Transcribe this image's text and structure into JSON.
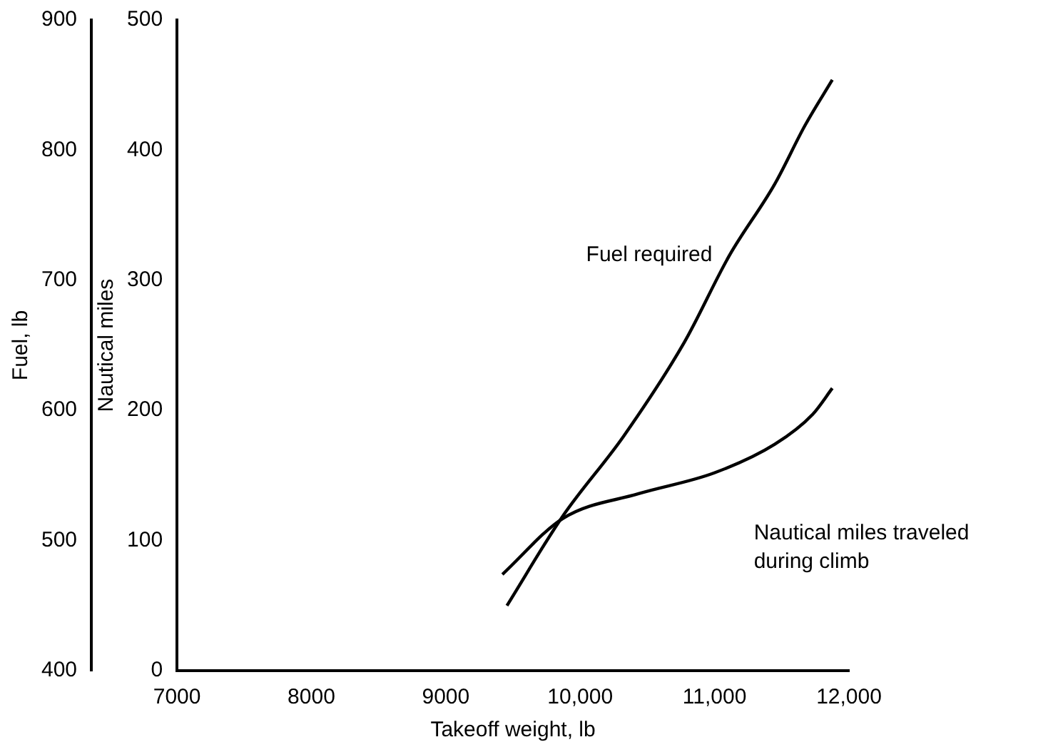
{
  "chart_data": {
    "type": "line",
    "xlabel": "Takeoff weight, lb",
    "ylabel": "Fuel, lb",
    "y2label": "Nautical miles",
    "xlim": [
      7000,
      12000
    ],
    "xticks": [
      7000,
      8000,
      9000,
      {
        "value": 10000,
        "label": "10,000"
      },
      {
        "value": 11000,
        "label": "11,000"
      },
      {
        "value": 12000,
        "label": "12,000"
      }
    ],
    "ylim": [
      400,
      900
    ],
    "yticks": [
      400,
      500,
      600,
      700,
      800,
      900
    ],
    "y2lim": [
      0,
      500
    ],
    "y2ticks": [
      0,
      100,
      200,
      300,
      400,
      500
    ],
    "grid": false,
    "legend": false,
    "marker": "none",
    "line_style": "solid",
    "series": [
      {
        "color": "#000000",
        "x": [
          9455,
          9872,
          10322,
          10773,
          11110,
          11448,
          11673,
          11876
        ],
        "values": [
          450,
          519,
          580,
          652,
          719,
          774,
          819,
          854
        ]
      },
      {
        "color": "#000000",
        "axis": "y2",
        "x": [
          9421,
          9872,
          10435,
          10998,
          11448,
          11730,
          11876
        ],
        "values": [
          74,
          117,
          136,
          152,
          174,
          197,
          217
        ]
      }
    ],
    "annotations": [
      "Fuel required",
      "Nautical miles traveled\nduring climb"
    ]
  }
}
